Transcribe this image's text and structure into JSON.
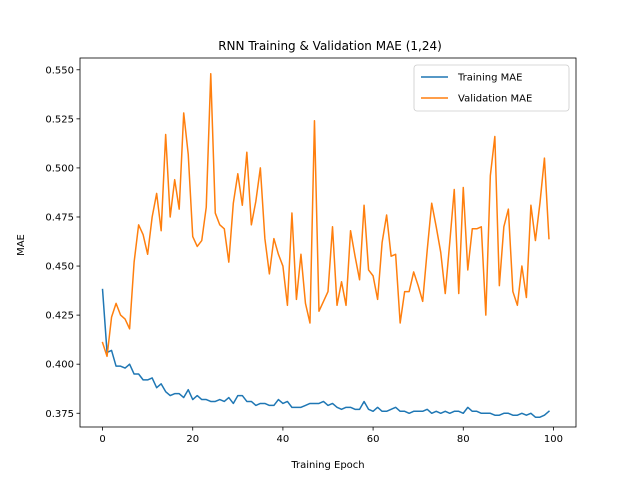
{
  "chart_data": {
    "type": "line",
    "title": "RNN Training & Validation MAE (1,24)",
    "xlabel": "Training Epoch",
    "ylabel": "MAE",
    "xlim": [
      -5,
      105
    ],
    "ylim": [
      0.368,
      0.556
    ],
    "xticks": [
      0,
      20,
      40,
      60,
      80,
      100
    ],
    "yticks": [
      0.375,
      0.4,
      0.425,
      0.45,
      0.475,
      0.5,
      0.525,
      0.55
    ],
    "grid": false,
    "legend_position": "top-right",
    "series": [
      {
        "name": "Training MAE",
        "color": "#1f77b4",
        "values": [
          0.438,
          0.406,
          0.407,
          0.399,
          0.399,
          0.398,
          0.4,
          0.395,
          0.395,
          0.392,
          0.392,
          0.393,
          0.388,
          0.39,
          0.386,
          0.384,
          0.385,
          0.385,
          0.383,
          0.387,
          0.382,
          0.384,
          0.382,
          0.382,
          0.381,
          0.381,
          0.382,
          0.381,
          0.383,
          0.38,
          0.384,
          0.384,
          0.381,
          0.381,
          0.379,
          0.38,
          0.38,
          0.379,
          0.379,
          0.382,
          0.38,
          0.381,
          0.378,
          0.378,
          0.378,
          0.379,
          0.38,
          0.38,
          0.38,
          0.381,
          0.379,
          0.38,
          0.378,
          0.377,
          0.378,
          0.378,
          0.377,
          0.377,
          0.381,
          0.377,
          0.376,
          0.378,
          0.376,
          0.376,
          0.377,
          0.378,
          0.376,
          0.376,
          0.375,
          0.376,
          0.376,
          0.376,
          0.377,
          0.375,
          0.376,
          0.375,
          0.376,
          0.375,
          0.376,
          0.376,
          0.375,
          0.378,
          0.376,
          0.376,
          0.375,
          0.375,
          0.375,
          0.374,
          0.374,
          0.375,
          0.375,
          0.374,
          0.374,
          0.375,
          0.374,
          0.375,
          0.373,
          0.373,
          0.374,
          0.376
        ]
      },
      {
        "name": "Validation MAE",
        "color": "#ff7f0e",
        "values": [
          0.411,
          0.404,
          0.424,
          0.431,
          0.425,
          0.423,
          0.418,
          0.452,
          0.471,
          0.466,
          0.456,
          0.475,
          0.487,
          0.468,
          0.517,
          0.475,
          0.494,
          0.479,
          0.528,
          0.507,
          0.465,
          0.46,
          0.463,
          0.48,
          0.548,
          0.477,
          0.471,
          0.469,
          0.452,
          0.482,
          0.497,
          0.481,
          0.508,
          0.471,
          0.483,
          0.5,
          0.464,
          0.446,
          0.464,
          0.456,
          0.45,
          0.43,
          0.477,
          0.433,
          0.456,
          0.431,
          0.421,
          0.524,
          0.427,
          0.432,
          0.437,
          0.47,
          0.43,
          0.442,
          0.43,
          0.468,
          0.455,
          0.443,
          0.481,
          0.448,
          0.445,
          0.433,
          0.462,
          0.476,
          0.455,
          0.456,
          0.421,
          0.437,
          0.437,
          0.447,
          0.44,
          0.432,
          0.458,
          0.482,
          0.47,
          0.457,
          0.436,
          0.462,
          0.489,
          0.436,
          0.49,
          0.448,
          0.469,
          0.469,
          0.47,
          0.425,
          0.496,
          0.516,
          0.44,
          0.47,
          0.479,
          0.437,
          0.43,
          0.45,
          0.434,
          0.481,
          0.463,
          0.482,
          0.505,
          0.464
        ]
      }
    ]
  }
}
